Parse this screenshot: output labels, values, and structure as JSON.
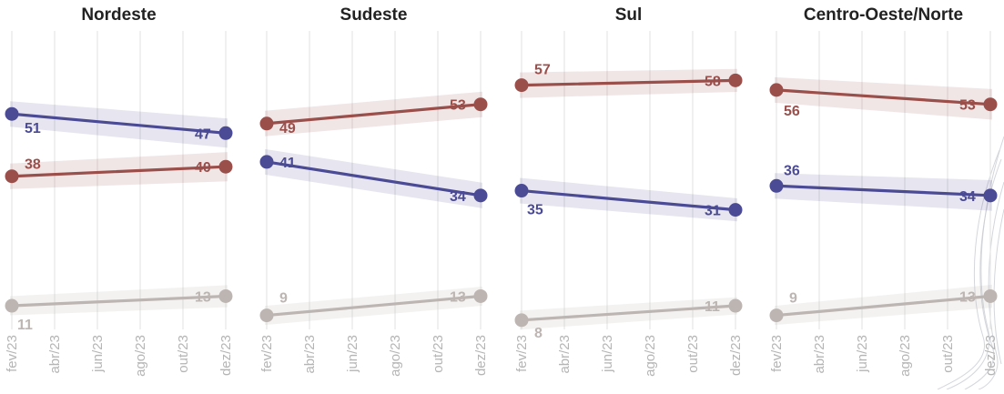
{
  "chart_data": [
    {
      "type": "line",
      "title": "Nordeste",
      "x": [
        "fev/23",
        "abr/23",
        "jun/23",
        "ago/23",
        "out/23",
        "dez/23"
      ],
      "series": [
        {
          "color": "#4b4a94",
          "points": [
            [
              "fev/23",
              51
            ],
            [
              "dez/23",
              47
            ]
          ],
          "labels": [
            "51",
            "47"
          ]
        },
        {
          "color": "#9a4f4b",
          "points": [
            [
              "fev/23",
              38
            ],
            [
              "dez/23",
              40
            ]
          ],
          "labels": [
            "38",
            "40"
          ]
        },
        {
          "color": "#bdb5b2",
          "points": [
            [
              "fev/23",
              11
            ],
            [
              "dez/23",
              13
            ]
          ],
          "labels": [
            "11",
            "13"
          ]
        }
      ]
    },
    {
      "type": "line",
      "title": "Sudeste",
      "x": [
        "fev/23",
        "abr/23",
        "jun/23",
        "ago/23",
        "out/23",
        "dez/23"
      ],
      "series": [
        {
          "color": "#4b4a94",
          "points": [
            [
              "fev/23",
              41
            ],
            [
              "dez/23",
              34
            ]
          ],
          "labels": [
            "41",
            "34"
          ]
        },
        {
          "color": "#9a4f4b",
          "points": [
            [
              "fev/23",
              49
            ],
            [
              "dez/23",
              53
            ]
          ],
          "labels": [
            "49",
            "53"
          ]
        },
        {
          "color": "#bdb5b2",
          "points": [
            [
              "fev/23",
              9
            ],
            [
              "dez/23",
              13
            ]
          ],
          "labels": [
            "9",
            "13"
          ]
        }
      ]
    },
    {
      "type": "line",
      "title": "Sul",
      "x": [
        "fev/23",
        "abr/23",
        "jun/23",
        "ago/23",
        "out/23",
        "dez/23"
      ],
      "series": [
        {
          "color": "#4b4a94",
          "points": [
            [
              "fev/23",
              35
            ],
            [
              "dez/23",
              31
            ]
          ],
          "labels": [
            "35",
            "31"
          ]
        },
        {
          "color": "#9a4f4b",
          "points": [
            [
              "fev/23",
              57
            ],
            [
              "dez/23",
              58
            ]
          ],
          "labels": [
            "57",
            "58"
          ]
        },
        {
          "color": "#bdb5b2",
          "points": [
            [
              "fev/23",
              8
            ],
            [
              "dez/23",
              11
            ]
          ],
          "labels": [
            "8",
            "11"
          ]
        }
      ]
    },
    {
      "type": "line",
      "title": "Centro-Oeste/Norte",
      "x": [
        "fev/23",
        "abr/23",
        "jun/23",
        "ago/23",
        "out/23",
        "dez/23"
      ],
      "series": [
        {
          "color": "#4b4a94",
          "points": [
            [
              "fev/23",
              36
            ],
            [
              "dez/23",
              34
            ]
          ],
          "labels": [
            "36",
            "34"
          ]
        },
        {
          "color": "#9a4f4b",
          "points": [
            [
              "fev/23",
              56
            ],
            [
              "dez/23",
              53
            ]
          ],
          "labels": [
            "56",
            "53"
          ]
        },
        {
          "color": "#bdb5b2",
          "points": [
            [
              "fev/23",
              9
            ],
            [
              "dez/23",
              13
            ]
          ],
          "labels": [
            "9",
            "13"
          ]
        }
      ]
    }
  ]
}
